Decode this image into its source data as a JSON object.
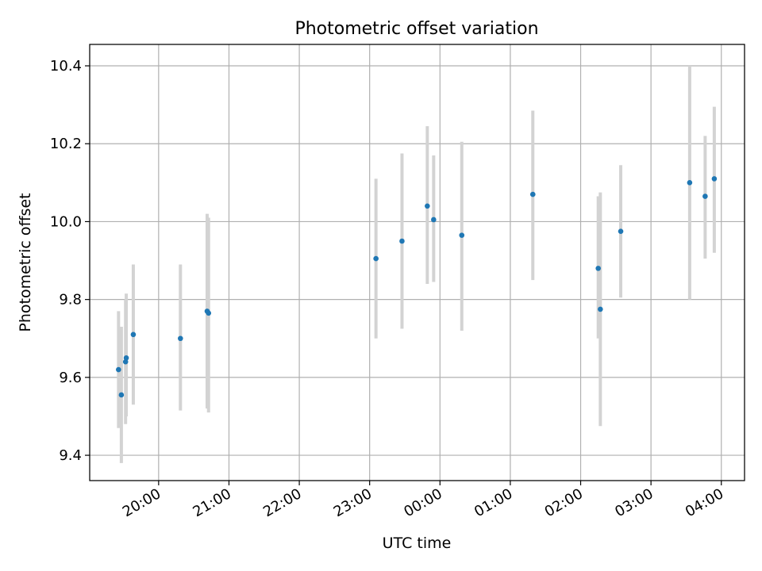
{
  "chart_data": {
    "type": "scatter",
    "title": "Photometric offset variation",
    "xlabel": "UTC time",
    "ylabel": "Photometric offset",
    "x_unit": "hours (UTC, continuing past midnight)",
    "xlim": [
      19.02,
      28.33
    ],
    "ylim": [
      9.335,
      10.455
    ],
    "xticks": [
      {
        "value": 20,
        "label": "20:00"
      },
      {
        "value": 21,
        "label": "21:00"
      },
      {
        "value": 22,
        "label": "22:00"
      },
      {
        "value": 23,
        "label": "23:00"
      },
      {
        "value": 24,
        "label": "00:00"
      },
      {
        "value": 25,
        "label": "01:00"
      },
      {
        "value": 26,
        "label": "02:00"
      },
      {
        "value": 27,
        "label": "03:00"
      },
      {
        "value": 28,
        "label": "04:00"
      }
    ],
    "yticks": [
      {
        "value": 9.4,
        "label": "9.4"
      },
      {
        "value": 9.6,
        "label": "9.6"
      },
      {
        "value": 9.8,
        "label": "9.8"
      },
      {
        "value": 10.0,
        "label": "10.0"
      },
      {
        "value": 10.2,
        "label": "10.2"
      },
      {
        "value": 10.4,
        "label": "10.4"
      }
    ],
    "grid": true,
    "colors": {
      "point": "#1f77b4",
      "errorbar": "#d3d3d3",
      "grid": "#b0b0b0"
    },
    "series": [
      {
        "points": [
          {
            "x": 19.43,
            "y": 9.62,
            "ylo": 9.47,
            "yhi": 9.77
          },
          {
            "x": 19.47,
            "y": 9.555,
            "ylo": 9.38,
            "yhi": 9.73
          },
          {
            "x": 19.53,
            "y": 9.64,
            "ylo": 9.48,
            "yhi": 9.8
          },
          {
            "x": 19.54,
            "y": 9.65,
            "ylo": 9.5,
            "yhi": 9.815
          },
          {
            "x": 19.64,
            "y": 9.71,
            "ylo": 9.53,
            "yhi": 9.89
          },
          {
            "x": 20.31,
            "y": 9.7,
            "ylo": 9.515,
            "yhi": 9.89
          },
          {
            "x": 20.69,
            "y": 9.77,
            "ylo": 9.52,
            "yhi": 10.02
          },
          {
            "x": 20.71,
            "y": 9.765,
            "ylo": 9.51,
            "yhi": 10.01
          },
          {
            "x": 23.09,
            "y": 9.905,
            "ylo": 9.7,
            "yhi": 10.11
          },
          {
            "x": 23.46,
            "y": 9.95,
            "ylo": 9.725,
            "yhi": 10.175
          },
          {
            "x": 23.82,
            "y": 10.04,
            "ylo": 9.84,
            "yhi": 10.245
          },
          {
            "x": 23.91,
            "y": 10.005,
            "ylo": 9.845,
            "yhi": 10.17
          },
          {
            "x": 24.31,
            "y": 9.965,
            "ylo": 9.72,
            "yhi": 10.205
          },
          {
            "x": 25.32,
            "y": 10.07,
            "ylo": 9.85,
            "yhi": 10.285
          },
          {
            "x": 26.25,
            "y": 9.88,
            "ylo": 9.7,
            "yhi": 10.065
          },
          {
            "x": 26.28,
            "y": 9.775,
            "ylo": 9.475,
            "yhi": 10.075
          },
          {
            "x": 26.57,
            "y": 9.975,
            "ylo": 9.805,
            "yhi": 10.145
          },
          {
            "x": 27.55,
            "y": 10.1,
            "ylo": 9.8,
            "yhi": 10.4
          },
          {
            "x": 27.77,
            "y": 10.065,
            "ylo": 9.905,
            "yhi": 10.22
          },
          {
            "x": 27.9,
            "y": 10.11,
            "ylo": 9.92,
            "yhi": 10.295
          }
        ]
      }
    ]
  }
}
